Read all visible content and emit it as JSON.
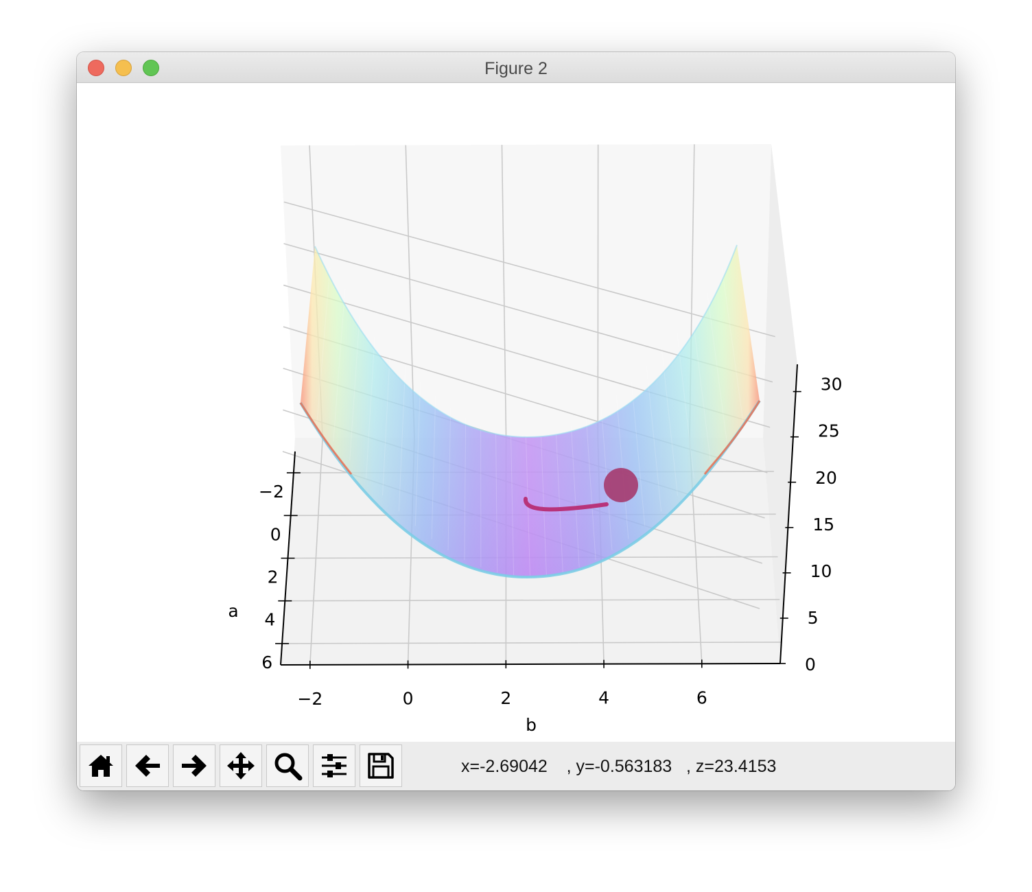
{
  "window": {
    "title": "Figure 2"
  },
  "toolbar": {
    "buttons": [
      {
        "name": "home-button",
        "icon": "home-icon"
      },
      {
        "name": "back-button",
        "icon": "arrow-left-icon"
      },
      {
        "name": "forward-button",
        "icon": "arrow-right-icon"
      },
      {
        "name": "pan-button",
        "icon": "move-icon"
      },
      {
        "name": "zoom-button",
        "icon": "magnifier-icon"
      },
      {
        "name": "configure-subplots-button",
        "icon": "sliders-icon"
      },
      {
        "name": "save-button",
        "icon": "floppy-disk-icon"
      }
    ],
    "coords": {
      "x": "x=-2.69042",
      "y": ", y=-0.563183",
      "z": ", z=23.4153"
    }
  },
  "chart_data": {
    "type": "surface",
    "xlabel": "b",
    "ylabel": "a",
    "zlabel": "",
    "x_ticks": [
      "−2",
      "0",
      "2",
      "4",
      "6"
    ],
    "y_ticks": [
      "−2",
      "0",
      "2",
      "4",
      "6"
    ],
    "z_ticks": [
      "0",
      "5",
      "10",
      "15",
      "20",
      "25",
      "30"
    ],
    "xlim": [
      -2.6,
      7.6
    ],
    "ylim": [
      -3,
      7
    ],
    "zlim": [
      0,
      33
    ],
    "surface_colormap": "rainbow",
    "colors": {
      "trajectory": "#b8337a",
      "marker": "#a53a6e"
    },
    "trajectory_end_marker": true
  }
}
